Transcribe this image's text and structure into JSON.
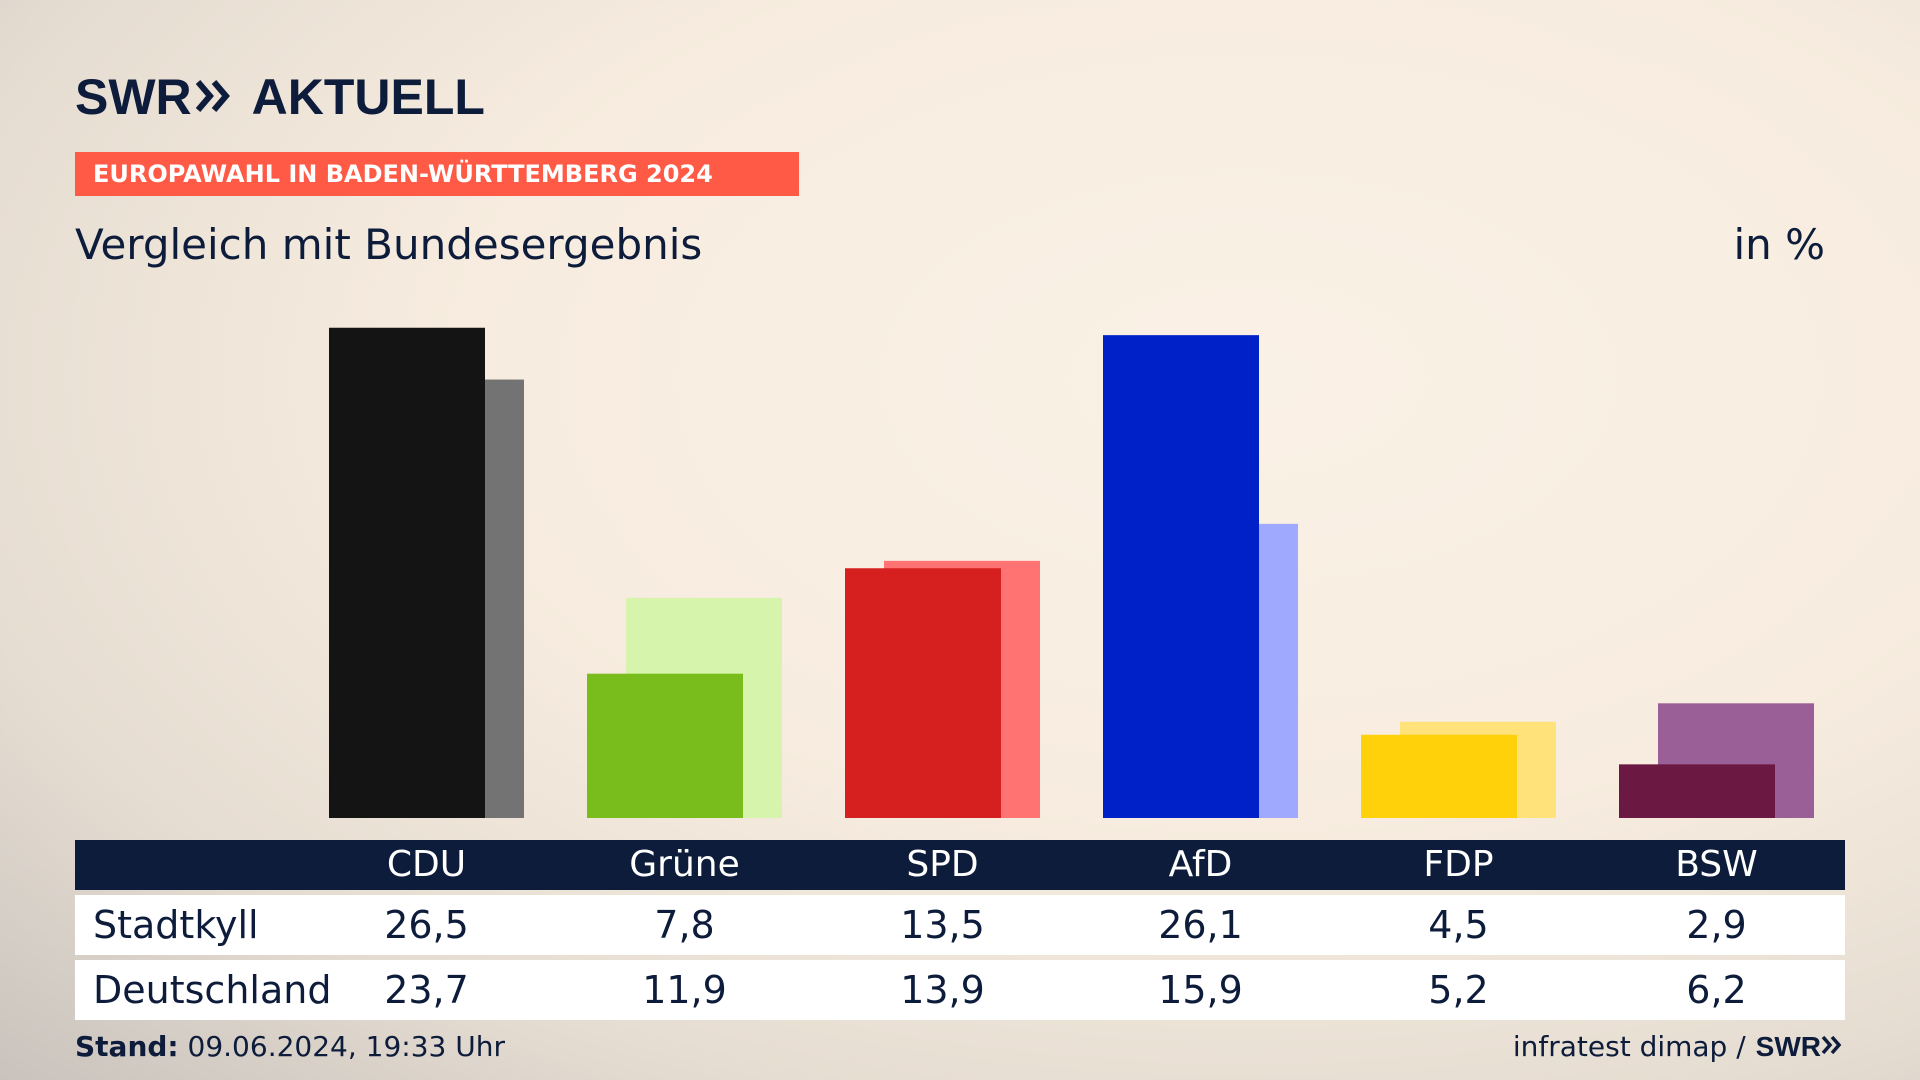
{
  "header": {
    "logo_text_1": "SWR",
    "logo_text_2": "AKTUELL",
    "banner": "EUROPAWAHL IN BADEN-WÜRTTEMBERG 2024",
    "subtitle": "Vergleich mit Bundesergebnis",
    "unit": "in %"
  },
  "colors": {
    "banner": "#ff5a45",
    "navy": "#0d1c3b"
  },
  "chart_data": {
    "type": "bar",
    "categories": [
      "CDU",
      "Grüne",
      "SPD",
      "AfD",
      "FDP",
      "BSW"
    ],
    "series": [
      {
        "name": "Stadtkyll",
        "values": [
          26.5,
          7.8,
          13.5,
          26.1,
          4.5,
          2.9
        ]
      },
      {
        "name": "Deutschland",
        "values": [
          23.7,
          11.9,
          13.9,
          15.9,
          5.2,
          6.2
        ]
      }
    ],
    "value_labels": {
      "Stadtkyll": [
        "26,5",
        "7,8",
        "13,5",
        "26,1",
        "4,5",
        "2,9"
      ],
      "Deutschland": [
        "23,7",
        "11,9",
        "13,9",
        "15,9",
        "5,2",
        "6,2"
      ]
    },
    "party_colors": {
      "primary": [
        "#141414",
        "#79bd1c",
        "#d61f1f",
        "#0020c8",
        "#ffd10a",
        "#6b1942"
      ],
      "secondary": [
        "#737373",
        "#d6f4ab",
        "#ff7373",
        "#9faaff",
        "#ffe27a",
        "#9b5f97"
      ]
    }
  },
  "footer": {
    "stand_label": "Stand:",
    "stand_value": "09.06.2024, 19:33 Uhr",
    "source": "infratest dimap /",
    "source_logo": "SWR"
  }
}
